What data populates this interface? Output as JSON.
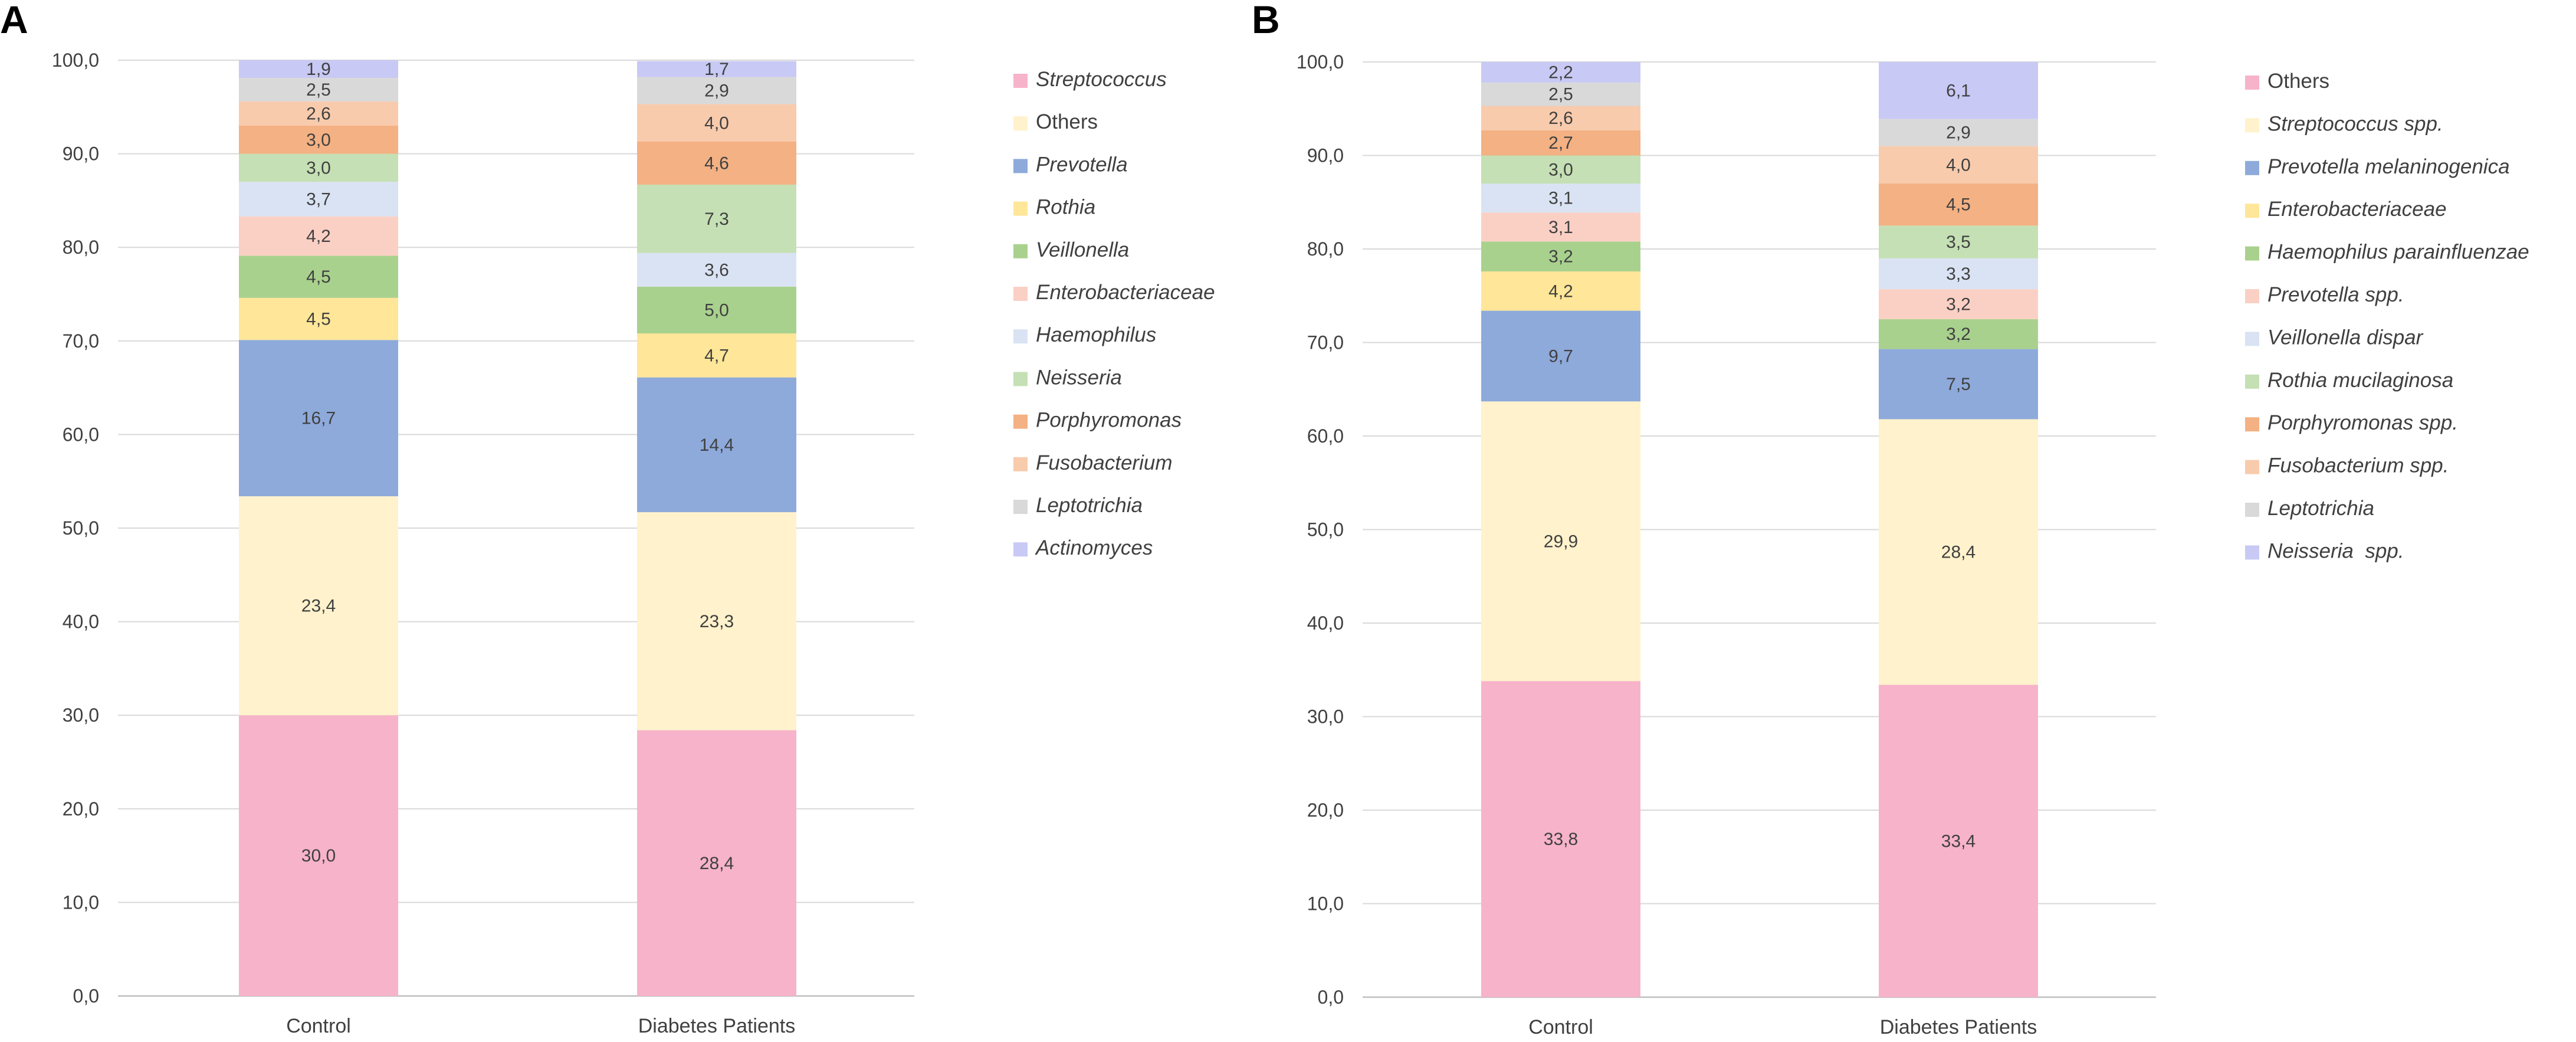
{
  "chart_data": [
    {
      "type": "bar",
      "stacked": true,
      "panel_label": "A",
      "categories": [
        "Control",
        "Diabetes Patients"
      ],
      "ylim": [
        0,
        100
      ],
      "yticks": [
        "0,0",
        "10,0",
        "20,0",
        "30,0",
        "40,0",
        "50,0",
        "60,0",
        "70,0",
        "80,0",
        "90,0",
        "100,0"
      ],
      "grid": true,
      "legend_position": "right",
      "series": [
        {
          "name": "Streptococcus",
          "italic": true,
          "color": "#f7b3c9",
          "values": [
            30.0,
            28.4
          ],
          "labels": [
            "30,0",
            "28,4"
          ]
        },
        {
          "name": "Others",
          "italic": false,
          "color": "#fff2cc",
          "values": [
            23.4,
            23.3
          ],
          "labels": [
            "23,4",
            "23,3"
          ]
        },
        {
          "name": "Prevotella",
          "italic": true,
          "color": "#8eaadb",
          "values": [
            16.7,
            14.4
          ],
          "labels": [
            "16,7",
            "14,4"
          ]
        },
        {
          "name": "Rothia",
          "italic": true,
          "color": "#ffe699",
          "values": [
            4.5,
            4.7
          ],
          "labels": [
            "4,5",
            "4,7"
          ]
        },
        {
          "name": "Veillonella",
          "italic": true,
          "color": "#a9d18e",
          "values": [
            4.5,
            5.0
          ],
          "labels": [
            "4,5",
            "5,0"
          ]
        },
        {
          "name": "Enterobacteriaceae",
          "italic": true,
          "color": "#fbd0c4",
          "values": [
            4.2,
            0
          ],
          "labels": [
            "4,2",
            ""
          ]
        },
        {
          "name": "Haemophilus",
          "italic": true,
          "color": "#dae3f3",
          "values": [
            3.7,
            3.6
          ],
          "labels": [
            "3,7",
            "3,6"
          ]
        },
        {
          "name": "Neisseria",
          "italic": true,
          "color": "#c5e0b4",
          "values": [
            3.0,
            7.3
          ],
          "labels": [
            "3,0",
            "7,3"
          ]
        },
        {
          "name": "Porphyromonas",
          "italic": true,
          "color": "#f4b183",
          "values": [
            3.0,
            4.6
          ],
          "labels": [
            "3,0",
            "4,6"
          ]
        },
        {
          "name": "Fusobacterium",
          "italic": true,
          "color": "#f8cbad",
          "values": [
            2.6,
            4.0
          ],
          "labels": [
            "2,6",
            "4,0"
          ]
        },
        {
          "name": "Leptotrichia",
          "italic": true,
          "color": "#d9d9d9",
          "values": [
            2.5,
            2.9
          ],
          "labels": [
            "2,5",
            "2,9"
          ]
        },
        {
          "name": "Actinomyces",
          "italic": true,
          "color": "#c9c9f5",
          "values": [
            1.9,
            1.7
          ],
          "labels": [
            "1,9",
            "1,7"
          ]
        }
      ]
    },
    {
      "type": "bar",
      "stacked": true,
      "panel_label": "B",
      "categories": [
        "Control",
        "Diabetes Patients"
      ],
      "ylim": [
        0,
        100
      ],
      "yticks": [
        "0,0",
        "10,0",
        "20,0",
        "30,0",
        "40,0",
        "50,0",
        "60,0",
        "70,0",
        "80,0",
        "90,0",
        "100,0"
      ],
      "grid": true,
      "legend_position": "right",
      "series": [
        {
          "name": "Others",
          "italic": false,
          "color": "#f7b3c9",
          "values": [
            33.8,
            33.4
          ],
          "labels": [
            "33,8",
            "33,4"
          ]
        },
        {
          "name": "Streptococcus spp.",
          "italic": true,
          "color": "#fff2cc",
          "values": [
            29.9,
            28.4
          ],
          "labels": [
            "29,9",
            "28,4"
          ]
        },
        {
          "name": "Prevotella melaninogenica",
          "italic": true,
          "color": "#8eaadb",
          "values": [
            9.7,
            7.5
          ],
          "labels": [
            "9,7",
            "7,5"
          ]
        },
        {
          "name": "Enterobacteriaceae",
          "italic": true,
          "color": "#ffe699",
          "values": [
            4.2,
            0
          ],
          "labels": [
            "4,2",
            ""
          ]
        },
        {
          "name": "Haemophilus parainfluenzae",
          "italic": true,
          "color": "#a9d18e",
          "values": [
            3.2,
            3.2
          ],
          "labels": [
            "3,2",
            "3,2"
          ]
        },
        {
          "name": "Prevotella spp.",
          "italic": true,
          "color": "#fbd0c4",
          "values": [
            3.1,
            3.2
          ],
          "labels": [
            "3,1",
            "3,2"
          ]
        },
        {
          "name": "Veillonella dispar",
          "italic": true,
          "color": "#dae3f3",
          "values": [
            3.1,
            3.3
          ],
          "labels": [
            "3,1",
            "3,3"
          ]
        },
        {
          "name": "Rothia mucilaginosa",
          "italic": true,
          "color": "#c5e0b4",
          "values": [
            3.0,
            3.5
          ],
          "labels": [
            "3,0",
            "3,5"
          ]
        },
        {
          "name": "Porphyromonas spp.",
          "italic": true,
          "color": "#f4b183",
          "values": [
            2.7,
            4.5
          ],
          "labels": [
            "2,7",
            "4,5"
          ]
        },
        {
          "name": "Fusobacterium spp.",
          "italic": true,
          "color": "#f8cbad",
          "values": [
            2.6,
            4.0
          ],
          "labels": [
            "2,6",
            "4,0"
          ]
        },
        {
          "name": "Leptotrichia",
          "italic": true,
          "color": "#d9d9d9",
          "values": [
            2.5,
            2.9
          ],
          "labels": [
            "2,5",
            "2,9"
          ]
        },
        {
          "name": "Neisseria  spp.",
          "italic": true,
          "color": "#c9c9f5",
          "values": [
            2.2,
            6.1
          ],
          "labels": [
            "2,2",
            "6,1"
          ]
        }
      ]
    }
  ]
}
